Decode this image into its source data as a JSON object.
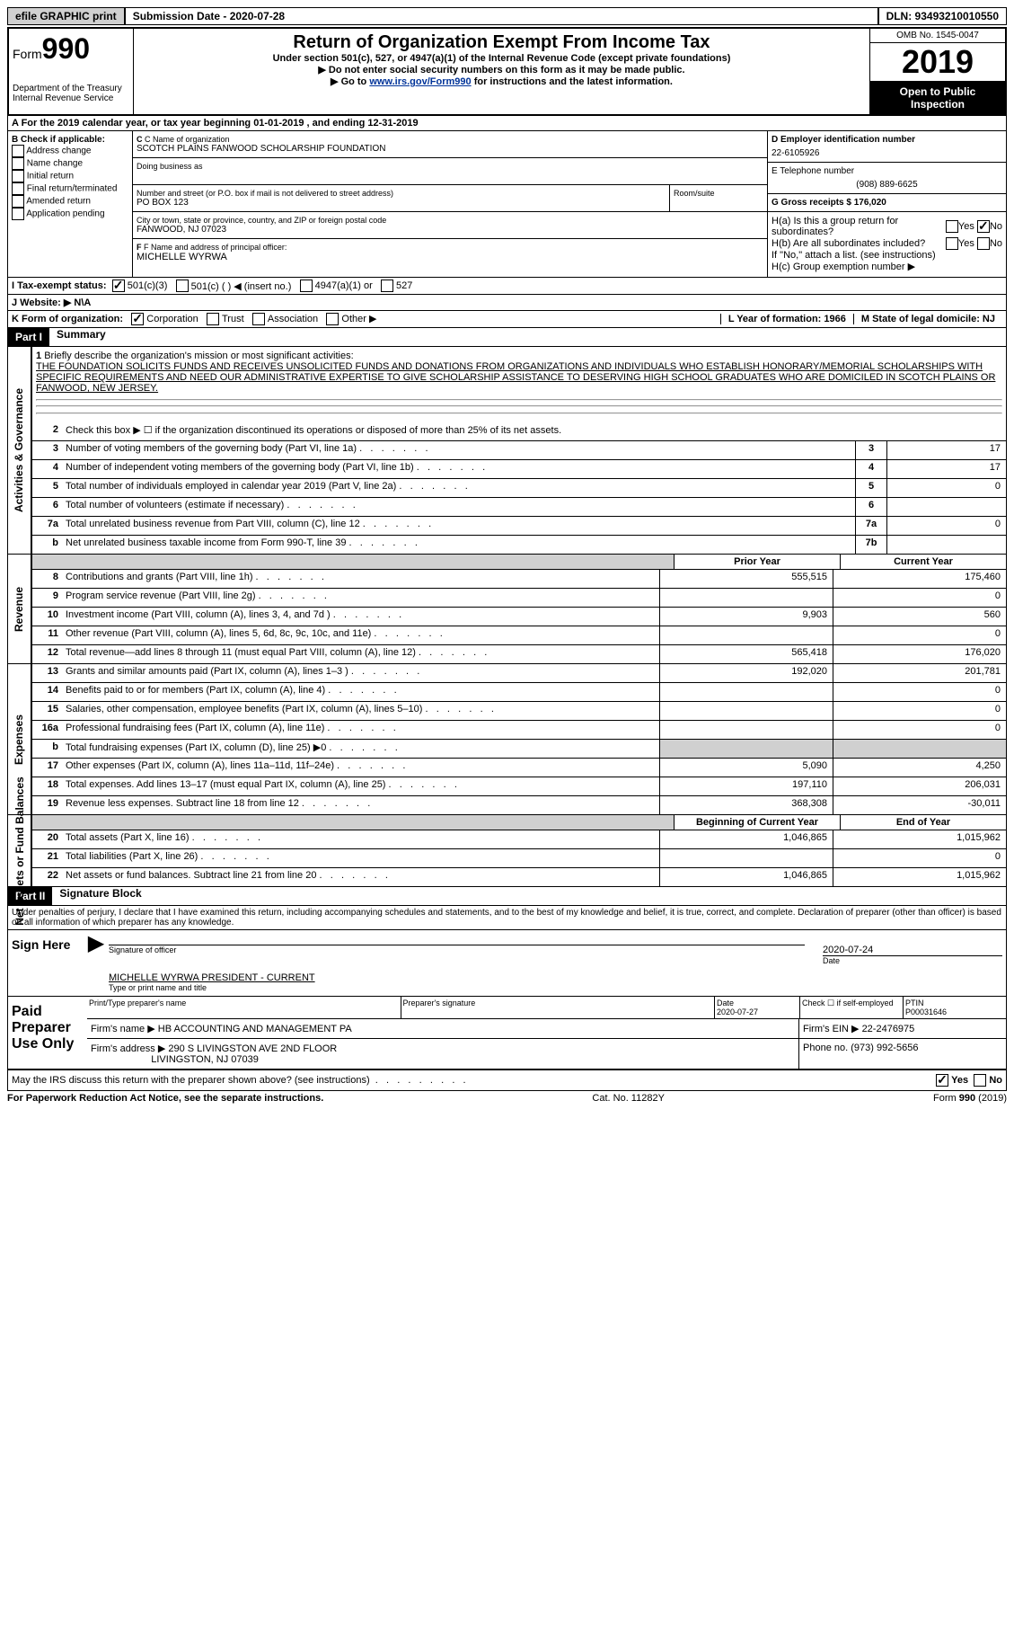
{
  "top": {
    "efile": "efile GRAPHIC print",
    "submission": "Submission Date - 2020-07-28",
    "dln": "DLN: 93493210010550"
  },
  "header": {
    "form_prefix": "Form",
    "form_num": "990",
    "dept": "Department of the Treasury",
    "irs": "Internal Revenue Service",
    "title": "Return of Organization Exempt From Income Tax",
    "sub1": "Under section 501(c), 527, or 4947(a)(1) of the Internal Revenue Code (except private foundations)",
    "sub2": "▶ Do not enter social security numbers on this form as it may be made public.",
    "sub3_pre": "▶ Go to ",
    "sub3_link": "www.irs.gov/Form990",
    "sub3_post": " for instructions and the latest information.",
    "omb": "OMB No. 1545-0047",
    "year": "2019",
    "open": "Open to Public Inspection"
  },
  "row_a": "A For the 2019 calendar year, or tax year beginning 01-01-2019    , and ending 12-31-2019",
  "col_b": {
    "title": "B Check if applicable:",
    "opts": [
      "Address change",
      "Name change",
      "Initial return",
      "Final return/terminated",
      "Amended return",
      "Application pending"
    ]
  },
  "col_c": {
    "c_label": "C Name of organization",
    "org": "SCOTCH PLAINS FANWOOD SCHOLARSHIP FOUNDATION",
    "dba": "Doing business as",
    "addr_label": "Number and street (or P.O. box if mail is not delivered to street address)",
    "room": "Room/suite",
    "addr": "PO BOX 123",
    "city_label": "City or town, state or province, country, and ZIP or foreign postal code",
    "city": "FANWOOD, NJ  07023",
    "f_label": "F Name and address of principal officer:",
    "officer": "MICHELLE WYRWA"
  },
  "col_d": {
    "d_label": "D Employer identification number",
    "ein": "22-6105926",
    "e_label": "E Telephone number",
    "phone": "(908) 889-6625",
    "g_label": "G Gross receipts $ 176,020"
  },
  "h": {
    "ha": "H(a)  Is this a group return for subordinates?",
    "hb": "H(b)  Are all subordinates included?",
    "hb_note": "If \"No,\" attach a list. (see instructions)",
    "hc": "H(c)  Group exemption number ▶",
    "yes": "Yes",
    "no": "No"
  },
  "row_i": {
    "label": "I    Tax-exempt status:",
    "o1": "501(c)(3)",
    "o2": "501(c) (   ) ◀ (insert no.)",
    "o3": "4947(a)(1) or",
    "o4": "527"
  },
  "row_j": "J    Website: ▶  N\\A",
  "row_k": {
    "label": "K Form of organization:",
    "corp": "Corporation",
    "trust": "Trust",
    "assoc": "Association",
    "other": "Other ▶"
  },
  "row_lm": {
    "l": "L Year of formation: 1966",
    "m": "M State of legal domicile: NJ"
  },
  "part1": {
    "header": "Part I",
    "title": "Summary",
    "q1": "Briefly describe the organization's mission or most significant activities:",
    "mission": "THE FOUNDATION SOLICITS FUNDS AND RECEIVES UNSOLICITED FUNDS AND DONATIONS FROM ORGANIZATIONS AND INDIVIDUALS WHO ESTABLISH HONORARY/MEMORIAL SCHOLARSHIPS WITH SPECIFIC REQUIREMENTS AND NEED OUR ADMINISTRATIVE EXPERTISE TO GIVE SCHOLARSHIP ASSISTANCE TO DESERVING HIGH SCHOOL GRADUATES WHO ARE DOMICILED IN SCOTCH PLAINS OR FANWOOD, NEW JERSEY.",
    "q2": "Check this box ▶ ☐  if the organization discontinued its operations or disposed of more than 25% of its net assets.",
    "side_gov": "Activities & Governance",
    "side_rev": "Revenue",
    "side_exp": "Expenses",
    "side_net": "Net Assets or Fund Balances",
    "lines_gov": [
      {
        "n": "3",
        "d": "Number of voting members of the governing body (Part VI, line 1a)",
        "box": "3",
        "v": "17"
      },
      {
        "n": "4",
        "d": "Number of independent voting members of the governing body (Part VI, line 1b)",
        "box": "4",
        "v": "17"
      },
      {
        "n": "5",
        "d": "Total number of individuals employed in calendar year 2019 (Part V, line 2a)",
        "box": "5",
        "v": "0"
      },
      {
        "n": "6",
        "d": "Total number of volunteers (estimate if necessary)",
        "box": "6",
        "v": ""
      },
      {
        "n": "7a",
        "d": "Total unrelated business revenue from Part VIII, column (C), line 12",
        "box": "7a",
        "v": "0"
      },
      {
        "n": "b",
        "d": "Net unrelated business taxable income from Form 990-T, line 39",
        "box": "7b",
        "v": ""
      }
    ],
    "hdr_prior": "Prior Year",
    "hdr_curr": "Current Year",
    "lines_rev": [
      {
        "n": "8",
        "d": "Contributions and grants (Part VIII, line 1h)",
        "p": "555,515",
        "c": "175,460"
      },
      {
        "n": "9",
        "d": "Program service revenue (Part VIII, line 2g)",
        "p": "",
        "c": "0"
      },
      {
        "n": "10",
        "d": "Investment income (Part VIII, column (A), lines 3, 4, and 7d )",
        "p": "9,903",
        "c": "560"
      },
      {
        "n": "11",
        "d": "Other revenue (Part VIII, column (A), lines 5, 6d, 8c, 9c, 10c, and 11e)",
        "p": "",
        "c": "0"
      },
      {
        "n": "12",
        "d": "Total revenue—add lines 8 through 11 (must equal Part VIII, column (A), line 12)",
        "p": "565,418",
        "c": "176,020"
      }
    ],
    "lines_exp": [
      {
        "n": "13",
        "d": "Grants and similar amounts paid (Part IX, column (A), lines 1–3 )",
        "p": "192,020",
        "c": "201,781"
      },
      {
        "n": "14",
        "d": "Benefits paid to or for members (Part IX, column (A), line 4)",
        "p": "",
        "c": "0"
      },
      {
        "n": "15",
        "d": "Salaries, other compensation, employee benefits (Part IX, column (A), lines 5–10)",
        "p": "",
        "c": "0"
      },
      {
        "n": "16a",
        "d": "Professional fundraising fees (Part IX, column (A), line 11e)",
        "p": "",
        "c": "0"
      },
      {
        "n": "b",
        "d": "Total fundraising expenses (Part IX, column (D), line 25) ▶0",
        "p": "",
        "c": ""
      },
      {
        "n": "17",
        "d": "Other expenses (Part IX, column (A), lines 11a–11d, 11f–24e)",
        "p": "5,090",
        "c": "4,250"
      },
      {
        "n": "18",
        "d": "Total expenses. Add lines 13–17 (must equal Part IX, column (A), line 25)",
        "p": "197,110",
        "c": "206,031"
      },
      {
        "n": "19",
        "d": "Revenue less expenses. Subtract line 18 from line 12",
        "p": "368,308",
        "c": "-30,011"
      }
    ],
    "hdr_begin": "Beginning of Current Year",
    "hdr_end": "End of Year",
    "lines_net": [
      {
        "n": "20",
        "d": "Total assets (Part X, line 16)",
        "p": "1,046,865",
        "c": "1,015,962"
      },
      {
        "n": "21",
        "d": "Total liabilities (Part X, line 26)",
        "p": "",
        "c": "0"
      },
      {
        "n": "22",
        "d": "Net assets or fund balances. Subtract line 21 from line 20",
        "p": "1,046,865",
        "c": "1,015,962"
      }
    ]
  },
  "part2": {
    "header": "Part II",
    "title": "Signature Block",
    "perjury": "Under penalties of perjury, I declare that I have examined this return, including accompanying schedules and statements, and to the best of my knowledge and belief, it is true, correct, and complete. Declaration of preparer (other than officer) is based on all information of which preparer has any knowledge.",
    "sign_here": "Sign Here",
    "sig_officer": "Signature of officer",
    "sig_date_v": "2020-07-24",
    "sig_date": "Date",
    "name_title": "MICHELLE WYRWA PRESIDENT - CURRENT",
    "type_name": "Type or print name and title",
    "paid": "Paid Preparer Use Only",
    "prep_name_l": "Print/Type preparer's name",
    "prep_sig_l": "Preparer's signature",
    "prep_date_l": "Date",
    "prep_date_v": "2020-07-27",
    "check_self": "Check ☐ if self-employed",
    "ptin_l": "PTIN",
    "ptin": "P00031646",
    "firm_l": "Firm's name      ▶",
    "firm": "HB ACCOUNTING AND MANAGEMENT PA",
    "firm_ein_l": "Firm's EIN ▶",
    "firm_ein": "22-2476975",
    "firm_addr_l": "Firm's address ▶",
    "firm_addr1": "290 S LIVINGSTON AVE 2ND FLOOR",
    "firm_addr2": "LIVINGSTON, NJ  07039",
    "phone_l": "Phone no.",
    "phone": "(973) 992-5656",
    "may_irs": "May the IRS discuss this return with the preparer shown above? (see instructions)"
  },
  "footer": {
    "left": "For Paperwork Reduction Act Notice, see the separate instructions.",
    "mid": "Cat. No. 11282Y",
    "right": "Form 990 (2019)"
  }
}
